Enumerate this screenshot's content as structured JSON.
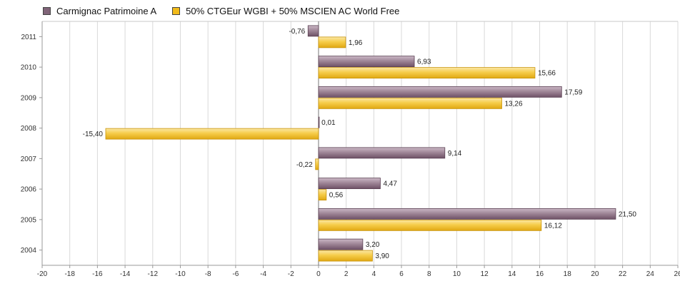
{
  "legend": [
    {
      "name": "Carmignac Patrimoine A",
      "color": "#806478"
    },
    {
      "name": "50% CTGEur WGBI + 50% MSCIEN AC World Free",
      "color": "#f2bb1a"
    }
  ],
  "chart_data": {
    "type": "bar",
    "orientation": "horizontal",
    "categories": [
      "2011",
      "2010",
      "2009",
      "2008",
      "2007",
      "2006",
      "2005",
      "2004"
    ],
    "series": [
      {
        "name": "Carmignac Patrimoine A",
        "color": "#806478",
        "values": [
          -0.76,
          6.93,
          17.59,
          0.01,
          9.14,
          4.47,
          21.5,
          3.2
        ],
        "labels": [
          "-0,76",
          "6,93",
          "17,59",
          "0,01",
          "9,14",
          "4,47",
          "21,50",
          "3,20"
        ]
      },
      {
        "name": "50% CTGEur WGBI + 50% MSCIEN AC World Free",
        "color": "#f2bb1a",
        "values": [
          1.96,
          15.66,
          13.26,
          -15.4,
          -0.22,
          0.56,
          16.12,
          3.9
        ],
        "labels": [
          "1,96",
          "15,66",
          "13,26",
          "-15,40",
          "-0,22",
          "0,56",
          "16,12",
          "3,90"
        ]
      }
    ],
    "xlim": [
      -20,
      26
    ],
    "xticks": [
      -20,
      -18,
      -16,
      -14,
      -12,
      -10,
      -8,
      -6,
      -4,
      -2,
      0,
      2,
      4,
      6,
      8,
      10,
      12,
      14,
      16,
      18,
      20,
      22,
      24,
      26
    ],
    "xtick_labels": [
      "-20",
      "-18",
      "-16",
      "-14",
      "-12",
      "-10",
      "-8",
      "-6",
      "-4",
      "-2",
      "0",
      "2",
      "4",
      "6",
      "8",
      "10",
      "12",
      "14",
      "16",
      "18",
      "20",
      "22",
      "24",
      "26"
    ],
    "grid": true,
    "legend_position": "top-left"
  }
}
